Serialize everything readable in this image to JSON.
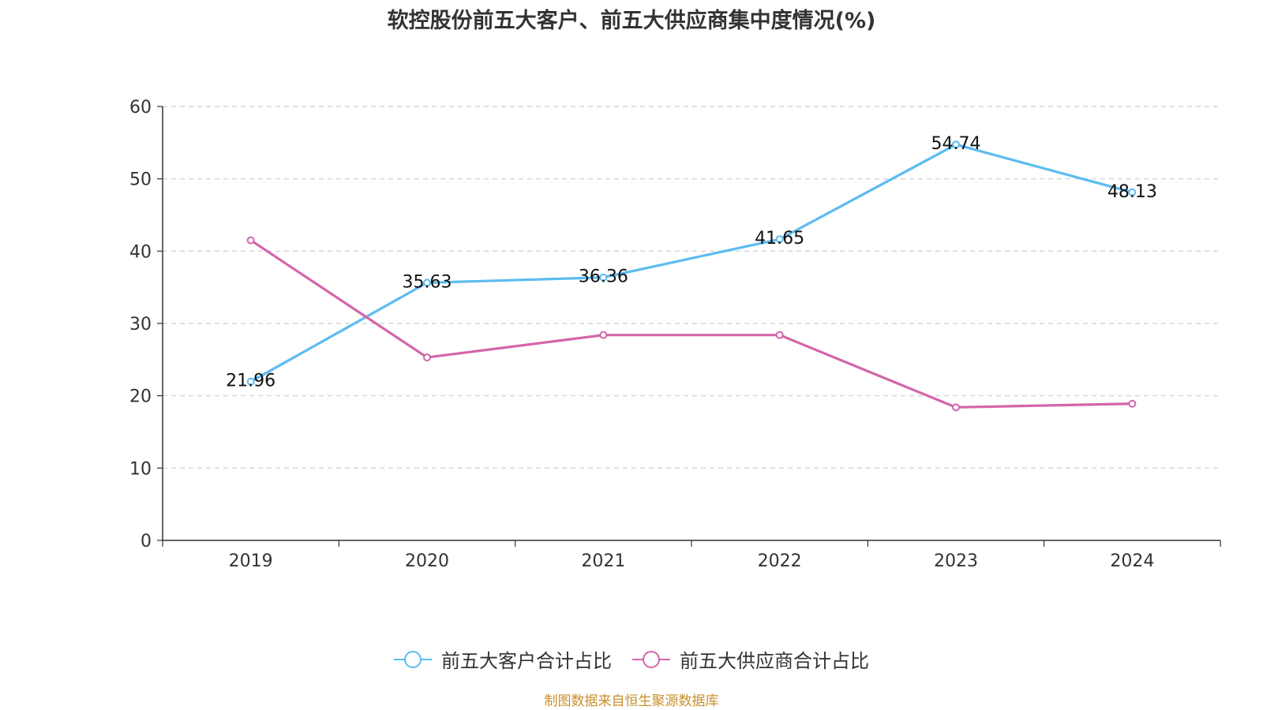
{
  "title": "软控股份前五大客户、前五大供应商集中度情况(%)",
  "source": "制图数据来自恒生聚源数据库",
  "colors": {
    "customers": "#5bbcf0",
    "suppliers": "#d465a9",
    "grid": "#c9cdd2",
    "axis": "#333333",
    "source_text": "#c8902a"
  },
  "chart_data": {
    "type": "line",
    "title": "软控股份前五大客户、前五大供应商集中度情况(%)",
    "categories": [
      "2019",
      "2020",
      "2021",
      "2022",
      "2023",
      "2024"
    ],
    "ylim": [
      0,
      60
    ],
    "yticks": [
      0,
      10,
      20,
      30,
      40,
      50,
      60
    ],
    "grid": true,
    "legend_position": "bottom",
    "series": [
      {
        "name": "前五大客户合计占比",
        "values": [
          21.96,
          35.63,
          36.36,
          41.65,
          54.74,
          48.13
        ],
        "show_labels": true
      },
      {
        "name": "前五大供应商合计占比",
        "values": [
          41.5,
          25.3,
          28.4,
          28.4,
          18.4,
          18.9
        ],
        "show_labels": false
      }
    ]
  }
}
